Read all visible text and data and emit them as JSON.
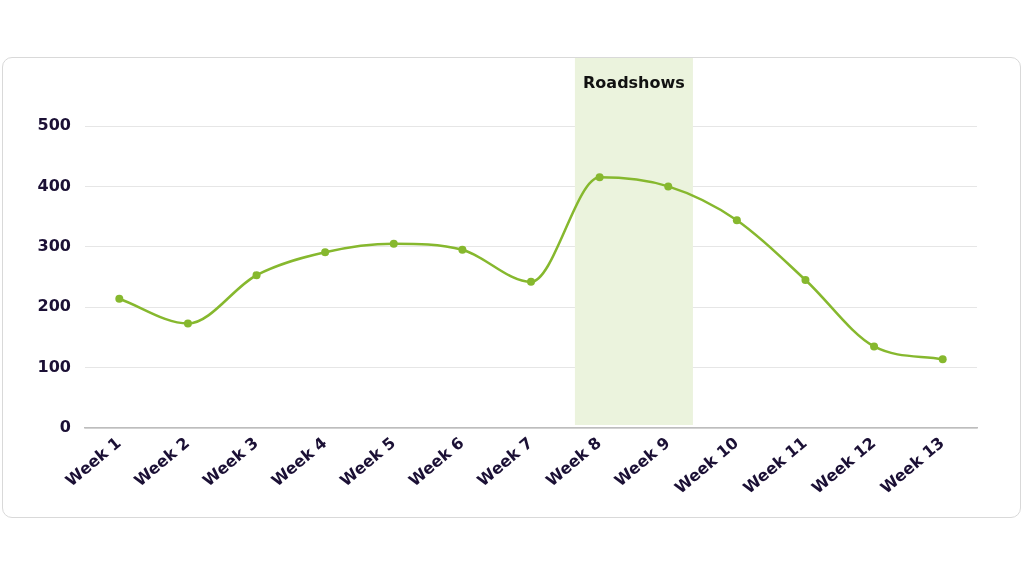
{
  "chart_data": {
    "type": "line",
    "categories": [
      "Week 1",
      "Week 2",
      "Week 3",
      "Week 4",
      "Week 5",
      "Week 6",
      "Week 7",
      "Week 8",
      "Week 9",
      "Week 10",
      "Week 11",
      "Week 12",
      "Week 13"
    ],
    "series": [
      {
        "color": "#86b82e",
        "values": [
          214,
          173,
          253,
          291,
          305,
          295,
          242,
          415,
          400,
          344,
          245,
          135,
          114
        ]
      }
    ],
    "ylim": [
      0,
      500
    ],
    "yticks": [
      0,
      100,
      200,
      300,
      400,
      500
    ],
    "grid": "y",
    "legend": false,
    "marker": "circle",
    "line_style": "solid",
    "bands": [
      {
        "axis": "x",
        "from": "Week 8",
        "to": "Week 9",
        "label": "Roadshows",
        "color": "#ebf3dd"
      }
    ]
  }
}
